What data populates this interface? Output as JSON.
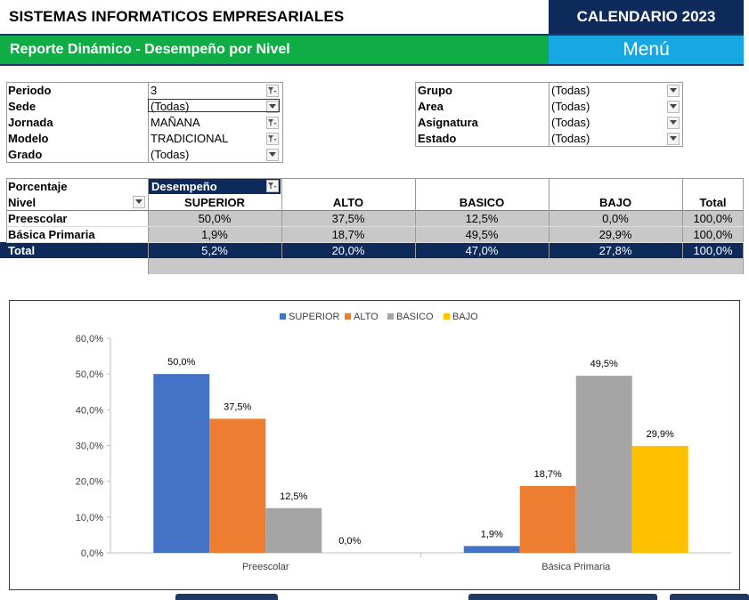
{
  "header": {
    "company": "SISTEMAS INFORMATICOS EMPRESARIALES",
    "calendar_button": "CALENDARIO 2023",
    "report_title": "Reporte Dinámico - Desempeño por Nivel",
    "menu_button": "Menú"
  },
  "filters_left": [
    {
      "label": "Periodo",
      "value": "3",
      "icon": "filter-applied-icon"
    },
    {
      "label": "Sede",
      "value": "(Todas)",
      "icon": "dropdown-icon"
    },
    {
      "label": "Jornada",
      "value": "MAÑANA",
      "icon": "filter-applied-icon"
    },
    {
      "label": "Modelo",
      "value": "TRADICIONAL",
      "icon": "filter-applied-icon"
    },
    {
      "label": "Grado",
      "value": "(Todas)",
      "icon": "dropdown-icon"
    }
  ],
  "filters_right": [
    {
      "label": "Grupo",
      "value": "(Todas)",
      "icon": "dropdown-icon"
    },
    {
      "label": "Area",
      "value": "(Todas)",
      "icon": "dropdown-icon"
    },
    {
      "label": "Asignatura",
      "value": "(Todas)",
      "icon": "dropdown-icon"
    },
    {
      "label": "Estado",
      "value": "(Todas)",
      "icon": "dropdown-icon"
    }
  ],
  "pivot": {
    "value_label": "Porcentaje",
    "column_field": "Desempeño",
    "row_field": "Nivel",
    "columns": [
      "SUPERIOR",
      "ALTO",
      "BASICO",
      "BAJO",
      "Total"
    ],
    "rows": [
      {
        "label": "Preescolar",
        "values": [
          "50,0%",
          "37,5%",
          "12,5%",
          "0,0%",
          "100,0%"
        ]
      },
      {
        "label": "Básica Primaria",
        "values": [
          "1,9%",
          "18,7%",
          "49,5%",
          "29,9%",
          "100,0%"
        ]
      }
    ],
    "total": {
      "label": "Total",
      "values": [
        "5,2%",
        "20,0%",
        "47,0%",
        "27,8%",
        "100,0%"
      ]
    }
  },
  "chart_data": {
    "type": "bar",
    "categories": [
      "Preescolar",
      "Básica Primaria"
    ],
    "series": [
      {
        "name": "SUPERIOR",
        "values": [
          50.0,
          1.9
        ],
        "color": "#4472c4"
      },
      {
        "name": "ALTO",
        "values": [
          37.5,
          18.7
        ],
        "color": "#ed7d31"
      },
      {
        "name": "BASICO",
        "values": [
          12.5,
          49.5
        ],
        "color": "#a5a5a5"
      },
      {
        "name": "BAJO",
        "values": [
          0.0,
          29.9
        ],
        "color": "#ffc000"
      }
    ],
    "data_labels": [
      [
        "50,0%",
        "1,9%"
      ],
      [
        "37,5%",
        "18,7%"
      ],
      [
        "12,5%",
        "49,5%"
      ],
      [
        "0,0%",
        "29,9%"
      ]
    ],
    "ylim": [
      0,
      60
    ],
    "yticks": [
      "0,0%",
      "10,0%",
      "20,0%",
      "30,0%",
      "40,0%",
      "50,0%",
      "60,0%"
    ],
    "legend_position": "top",
    "grid": false
  },
  "colors": {
    "calendar_bg": "#0e2a5a",
    "report_bar": "#10ad47",
    "menu_bg": "#17a8e3",
    "pivot_total_row": "#0e2a5a",
    "pivot_cells": "#c8c8c8"
  }
}
